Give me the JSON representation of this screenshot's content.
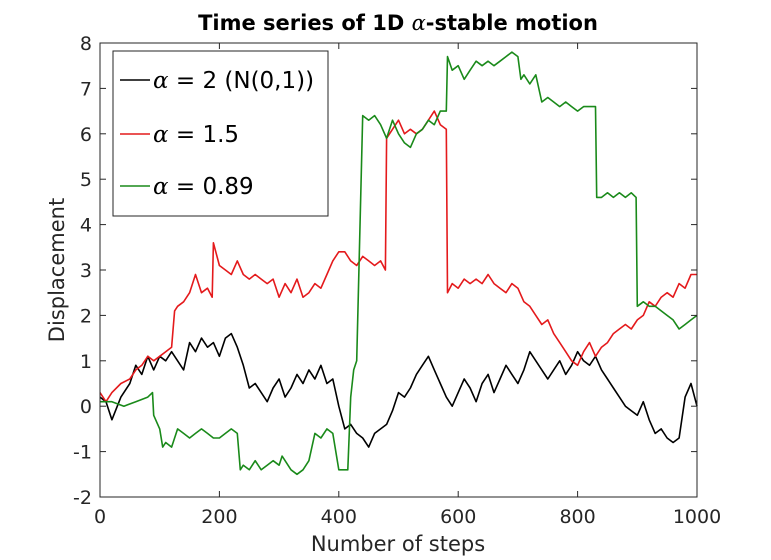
{
  "chart_data": {
    "type": "line",
    "title_prefix": "Time series of 1D ",
    "title_symbol": "α",
    "title_suffix": "-stable motion",
    "xlabel": "Number of steps",
    "ylabel": "Displacement",
    "xlim": [
      0,
      1000
    ],
    "ylim": [
      -2,
      8
    ],
    "xticks": [
      0,
      200,
      400,
      600,
      800,
      1000
    ],
    "yticks": [
      -2,
      -1,
      0,
      1,
      2,
      3,
      4,
      5,
      6,
      7,
      8
    ],
    "grid": false,
    "legend_position": "top-left",
    "series": [
      {
        "symbol": "α",
        "name": " = 2 (N(0,1))",
        "color": "#000000",
        "x": [
          0,
          10,
          20,
          35,
          50,
          60,
          70,
          80,
          90,
          100,
          110,
          120,
          130,
          140,
          150,
          160,
          170,
          180,
          190,
          200,
          210,
          220,
          230,
          240,
          250,
          260,
          270,
          280,
          290,
          300,
          310,
          320,
          330,
          340,
          350,
          360,
          370,
          380,
          390,
          400,
          410,
          420,
          430,
          440,
          450,
          460,
          470,
          480,
          490,
          500,
          510,
          520,
          530,
          540,
          550,
          560,
          570,
          580,
          590,
          600,
          610,
          620,
          630,
          640,
          650,
          660,
          670,
          680,
          690,
          700,
          710,
          720,
          730,
          740,
          750,
          760,
          770,
          780,
          790,
          800,
          810,
          820,
          830,
          840,
          850,
          860,
          870,
          880,
          890,
          900,
          910,
          920,
          930,
          940,
          950,
          960,
          970,
          980,
          990,
          1000
        ],
        "y": [
          0.2,
          0.1,
          -0.3,
          0.2,
          0.5,
          0.9,
          0.7,
          1.1,
          0.8,
          1.1,
          1.0,
          1.2,
          1.0,
          0.8,
          1.4,
          1.2,
          1.5,
          1.3,
          1.4,
          1.1,
          1.5,
          1.6,
          1.3,
          0.9,
          0.4,
          0.5,
          0.3,
          0.1,
          0.4,
          0.6,
          0.2,
          0.4,
          0.7,
          0.5,
          0.8,
          0.6,
          0.9,
          0.5,
          0.6,
          0.0,
          -0.5,
          -0.4,
          -0.6,
          -0.7,
          -0.9,
          -0.6,
          -0.5,
          -0.4,
          -0.1,
          0.3,
          0.2,
          0.4,
          0.7,
          0.9,
          1.1,
          0.8,
          0.5,
          0.2,
          0.0,
          0.3,
          0.6,
          0.4,
          0.1,
          0.5,
          0.7,
          0.3,
          0.6,
          0.9,
          0.7,
          0.5,
          0.8,
          1.2,
          1.0,
          0.8,
          0.6,
          0.8,
          1.0,
          0.7,
          0.9,
          1.2,
          1.0,
          0.9,
          1.1,
          0.8,
          0.6,
          0.4,
          0.2,
          0.0,
          -0.1,
          -0.2,
          0.1,
          -0.3,
          -0.6,
          -0.5,
          -0.7,
          -0.8,
          -0.7,
          0.2,
          0.5,
          0.0
        ]
      },
      {
        "symbol": "α",
        "name": " = 1.5",
        "color": "#e41a1c",
        "x": [
          0,
          10,
          20,
          35,
          50,
          60,
          70,
          80,
          90,
          100,
          110,
          120,
          125,
          130,
          140,
          150,
          160,
          170,
          180,
          188,
          190,
          200,
          210,
          220,
          230,
          240,
          250,
          260,
          270,
          280,
          290,
          300,
          310,
          320,
          330,
          340,
          350,
          360,
          370,
          380,
          390,
          400,
          410,
          420,
          430,
          440,
          450,
          460,
          470,
          478,
          480,
          490,
          500,
          510,
          520,
          530,
          540,
          550,
          560,
          570,
          580,
          582,
          590,
          600,
          610,
          620,
          630,
          640,
          650,
          660,
          670,
          680,
          690,
          700,
          710,
          720,
          730,
          740,
          750,
          760,
          770,
          780,
          790,
          800,
          810,
          820,
          830,
          840,
          850,
          860,
          870,
          880,
          890,
          900,
          910,
          920,
          930,
          940,
          950,
          960,
          970,
          980,
          990,
          1000
        ],
        "y": [
          0.3,
          0.1,
          0.3,
          0.5,
          0.6,
          0.8,
          0.9,
          1.1,
          1.0,
          1.1,
          1.2,
          1.3,
          2.1,
          2.2,
          2.3,
          2.5,
          2.9,
          2.5,
          2.6,
          2.4,
          3.6,
          3.1,
          3.0,
          2.9,
          3.2,
          2.9,
          2.8,
          2.9,
          2.8,
          2.7,
          2.8,
          2.4,
          2.7,
          2.5,
          2.8,
          2.4,
          2.5,
          2.7,
          2.6,
          2.9,
          3.2,
          3.4,
          3.4,
          3.2,
          3.1,
          3.3,
          3.2,
          3.1,
          3.2,
          3.0,
          5.9,
          6.1,
          6.3,
          6.0,
          6.1,
          6.0,
          6.1,
          6.3,
          6.5,
          6.2,
          6.1,
          2.5,
          2.7,
          2.6,
          2.8,
          2.7,
          2.8,
          2.7,
          2.9,
          2.7,
          2.6,
          2.5,
          2.7,
          2.6,
          2.3,
          2.2,
          2.0,
          1.8,
          1.9,
          1.6,
          1.4,
          1.2,
          1.0,
          0.9,
          1.2,
          1.4,
          1.1,
          1.3,
          1.4,
          1.6,
          1.7,
          1.8,
          1.7,
          1.9,
          2.0,
          2.3,
          2.2,
          2.4,
          2.5,
          2.4,
          2.7,
          2.6,
          2.9,
          2.9
        ]
      },
      {
        "symbol": "α",
        "name": " = 0.89",
        "color": "#1a8a1a",
        "x": [
          0,
          20,
          40,
          60,
          80,
          88,
          90,
          100,
          105,
          110,
          120,
          130,
          140,
          150,
          160,
          170,
          180,
          190,
          200,
          210,
          220,
          230,
          235,
          240,
          250,
          260,
          270,
          280,
          290,
          300,
          305,
          310,
          320,
          330,
          340,
          350,
          360,
          370,
          380,
          390,
          400,
          410,
          415,
          420,
          425,
          430,
          440,
          450,
          460,
          470,
          480,
          490,
          500,
          510,
          520,
          530,
          540,
          550,
          560,
          570,
          580,
          582,
          590,
          600,
          610,
          620,
          630,
          640,
          650,
          660,
          670,
          680,
          690,
          700,
          705,
          710,
          720,
          730,
          740,
          750,
          760,
          770,
          780,
          790,
          800,
          810,
          820,
          830,
          832,
          840,
          850,
          860,
          870,
          880,
          890,
          898,
          900,
          910,
          920,
          930,
          940,
          950,
          960,
          970,
          980,
          990,
          1000
        ],
        "y": [
          0.1,
          0.1,
          0.0,
          0.1,
          0.2,
          0.3,
          -0.2,
          -0.5,
          -0.9,
          -0.8,
          -0.9,
          -0.5,
          -0.6,
          -0.7,
          -0.6,
          -0.5,
          -0.6,
          -0.7,
          -0.7,
          -0.6,
          -0.5,
          -0.6,
          -1.4,
          -1.3,
          -1.4,
          -1.2,
          -1.4,
          -1.3,
          -1.2,
          -1.3,
          -1.1,
          -1.2,
          -1.4,
          -1.5,
          -1.4,
          -1.2,
          -0.6,
          -0.7,
          -0.5,
          -0.6,
          -1.4,
          -1.4,
          -1.4,
          0.2,
          0.8,
          1.0,
          6.4,
          6.3,
          6.4,
          6.2,
          5.9,
          6.3,
          6.0,
          5.8,
          5.7,
          6.0,
          6.1,
          6.3,
          6.2,
          6.5,
          6.5,
          7.7,
          7.4,
          7.5,
          7.2,
          7.4,
          7.6,
          7.5,
          7.6,
          7.5,
          7.6,
          7.7,
          7.8,
          7.7,
          7.2,
          7.3,
          7.1,
          7.3,
          6.7,
          6.8,
          6.7,
          6.6,
          6.7,
          6.6,
          6.5,
          6.6,
          6.6,
          6.6,
          4.6,
          4.6,
          4.7,
          4.6,
          4.7,
          4.6,
          4.7,
          4.6,
          2.2,
          2.3,
          2.2,
          2.2,
          2.1,
          2.0,
          1.9,
          1.7,
          1.8,
          1.9,
          2.0
        ]
      }
    ]
  }
}
